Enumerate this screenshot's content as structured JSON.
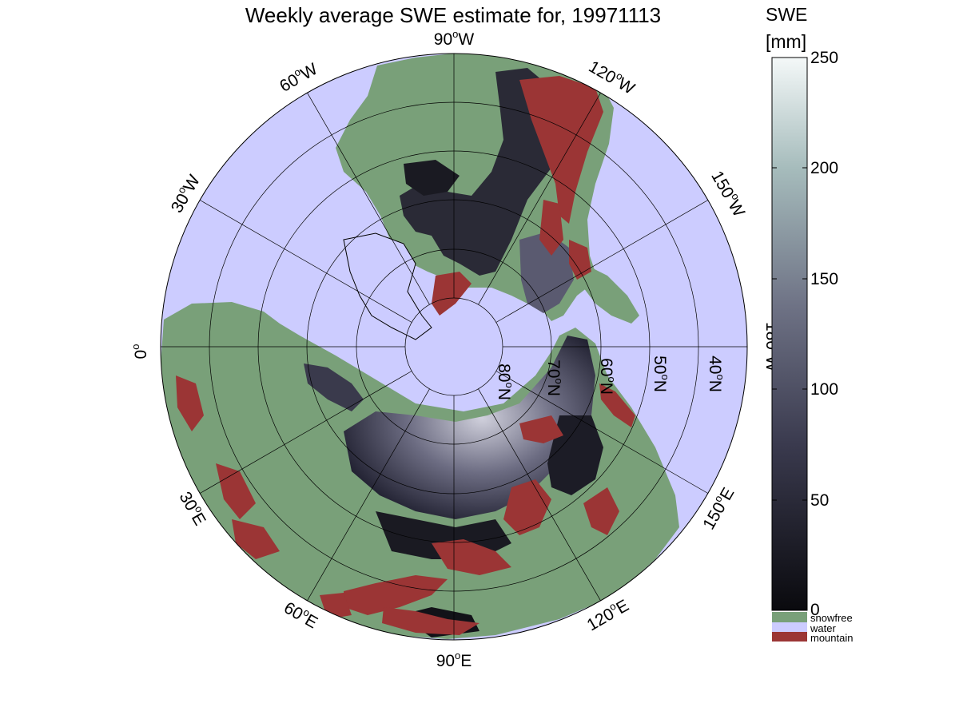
{
  "title": "Weekly average SWE estimate for, 19971113",
  "map": {
    "colors": {
      "water": "#ccccff",
      "snowfree": "#79a079",
      "mountain": "#9b3535",
      "swe_low": "#0d0d12",
      "swe_mid": "#484860",
      "swe_high": "#f2f8f8"
    },
    "meridian_labels": [
      {
        "id": "90w",
        "deg": "90",
        "dir": "W"
      },
      {
        "id": "120w",
        "deg": "120",
        "dir": "W"
      },
      {
        "id": "60w",
        "deg": "60",
        "dir": "W"
      },
      {
        "id": "150w",
        "deg": "150",
        "dir": "W"
      },
      {
        "id": "30w",
        "deg": "30",
        "dir": "W"
      },
      {
        "id": "180w",
        "deg": "180",
        "dir": "W"
      },
      {
        "id": "0",
        "deg": "0",
        "dir": ""
      },
      {
        "id": "150e",
        "deg": "150",
        "dir": "E"
      },
      {
        "id": "30e",
        "deg": "30",
        "dir": "E"
      },
      {
        "id": "120e",
        "deg": "120",
        "dir": "E"
      },
      {
        "id": "60e",
        "deg": "60",
        "dir": "E"
      },
      {
        "id": "90e",
        "deg": "90",
        "dir": "E"
      }
    ],
    "parallel_labels": [
      {
        "id": "80n",
        "deg": "80",
        "dir": "N"
      },
      {
        "id": "70n",
        "deg": "70",
        "dir": "N"
      },
      {
        "id": "60n",
        "deg": "60",
        "dir": "N"
      },
      {
        "id": "50n",
        "deg": "50",
        "dir": "N"
      },
      {
        "id": "40n",
        "deg": "40",
        "dir": "N"
      }
    ]
  },
  "colorbar": {
    "title_line1": "SWE",
    "title_line2": "[mm]",
    "ticks": [
      "250",
      "200",
      "150",
      "100",
      "50",
      "0"
    ],
    "range": [
      0,
      250
    ],
    "legend": [
      {
        "label": "snowfree",
        "color": "#79a079"
      },
      {
        "label": "water",
        "color": "#ccccff"
      },
      {
        "label": "mountain",
        "color": "#9b3535"
      }
    ]
  }
}
